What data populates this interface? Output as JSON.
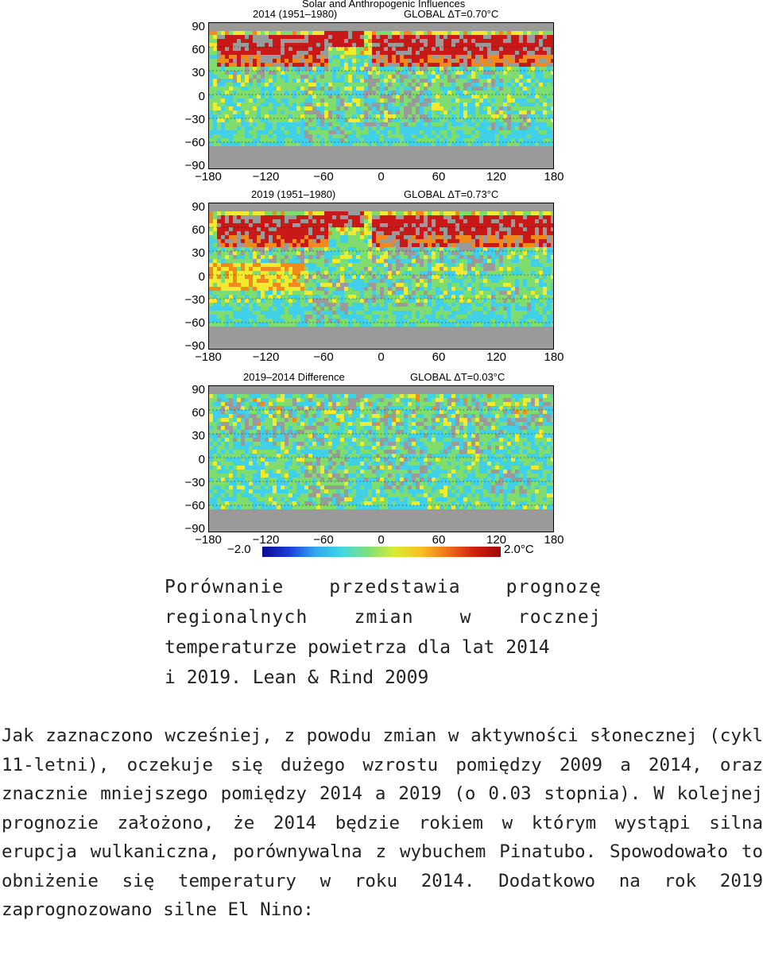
{
  "figure": {
    "title": "Solar and Anthropogenic Influences",
    "panels": [
      {
        "label": "2014 (1951–1980)",
        "global": "GLOBAL ΔT=0.70°C",
        "scheme": "warm2014"
      },
      {
        "label": "2019 (1951–1980)",
        "global": "GLOBAL ΔT=0.73°C",
        "scheme": "warm2019"
      },
      {
        "label": "2019–2014 Difference",
        "global": "GLOBAL ΔT=0.03°C",
        "scheme": "diff"
      }
    ],
    "y_ticks": [
      "90",
      "60",
      "30",
      "0",
      "−30",
      "−60",
      "−90"
    ],
    "x_ticks": [
      "−180",
      "−120",
      "−60",
      "0",
      "60",
      "120",
      "180"
    ],
    "colorbar": {
      "min_label": "−2.0",
      "max_label": "2.0°C"
    },
    "colors": {
      "blue": "#1a1aa0",
      "cyan": "#40d0e8",
      "green": "#7fdc6f",
      "yellow": "#f2ea2e",
      "orange": "#f08a1c",
      "red": "#c81818",
      "gray": "#9a9a9a"
    }
  },
  "caption": {
    "lines": [
      "Porównanie przedstawia prognozę regionalnych zmian w rocznej",
      "temperaturze powietrza dla lat 2014",
      "i 2019. Lean & Rind 2009"
    ]
  },
  "body": {
    "paragraph": "Jak zaznaczono wcześniej, z powodu zmian w aktywności słonecznej (cykl 11-letni), oczekuje się dużego wzrostu pomiędzy 2009 a 2014, oraz znacznie mniejszego pomiędzy 2014 a 2019 (o 0.03 stopnia). W kolejnej prognozie założono, że 2014 będzie rokiem w którym wystąpi silna erupcja wulkaniczna, porównywalna z wybuchem Pinatubo. Spowodowało to obniżenie się temperatury w roku 2014. Dodatkowo na rok 2019 zaprognozowano silne El Nino:"
  }
}
